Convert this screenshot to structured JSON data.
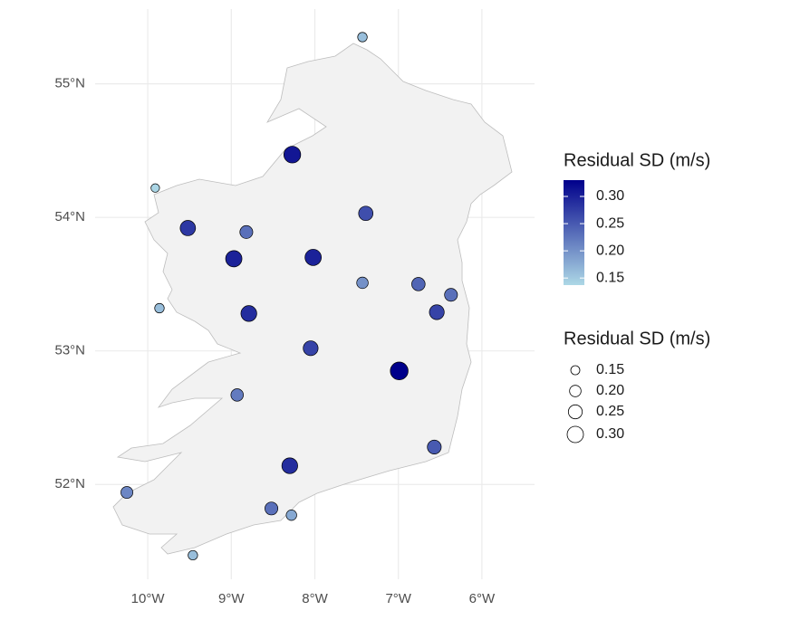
{
  "chart_data": {
    "type": "scatter",
    "x": [
      -7.43,
      -8.27,
      -9.91,
      -9.52,
      -8.82,
      -7.39,
      -8.97,
      -8.02,
      -7.43,
      -6.76,
      -6.37,
      -9.86,
      -8.79,
      -6.54,
      -8.05,
      -6.99,
      -8.93,
      -6.57,
      -8.3,
      -10.25,
      -8.52,
      -8.28,
      -9.46
    ],
    "y": [
      55.35,
      54.47,
      54.22,
      53.92,
      53.89,
      54.03,
      53.69,
      53.7,
      53.51,
      53.5,
      53.42,
      53.32,
      53.28,
      53.29,
      53.02,
      52.85,
      52.67,
      52.28,
      52.14,
      51.94,
      51.82,
      51.77,
      51.47
    ],
    "values": [
      0.16,
      0.31,
      0.14,
      0.28,
      0.23,
      0.26,
      0.3,
      0.3,
      0.2,
      0.24,
      0.23,
      0.16,
      0.29,
      0.27,
      0.27,
      0.33,
      0.22,
      0.25,
      0.29,
      0.21,
      0.23,
      0.18,
      0.16
    ],
    "xlim": [
      -10.63,
      -5.37
    ],
    "ylim": [
      51.29,
      55.56
    ],
    "xticks": [
      {
        "value": -10,
        "label": "10°W"
      },
      {
        "value": -9,
        "label": "9°W"
      },
      {
        "value": -8,
        "label": "8°W"
      },
      {
        "value": -7,
        "label": "7°W"
      },
      {
        "value": -6,
        "label": "6°W"
      }
    ],
    "yticks": [
      {
        "value": 52,
        "label": "52°N"
      },
      {
        "value": 53,
        "label": "53°N"
      },
      {
        "value": 54,
        "label": "54°N"
      },
      {
        "value": 55,
        "label": "55°N"
      }
    ],
    "grid": true,
    "color_low": "#add8e6",
    "color_high": "#00008b",
    "color_legend": {
      "title": "Residual SD (m/s)",
      "range": [
        0.137,
        0.33
      ],
      "ticks": [
        0.15,
        {
          "value": 0.2,
          "label": "0.20"
        },
        0.25,
        {
          "value": 0.3,
          "label": "0.30"
        }
      ]
    },
    "size_legend": {
      "title": "Residual SD (m/s)",
      "ticks": [
        0.15,
        {
          "value": 0.2,
          "label": "0.20"
        },
        0.25,
        {
          "value": 0.3,
          "label": "0.30"
        }
      ]
    }
  }
}
